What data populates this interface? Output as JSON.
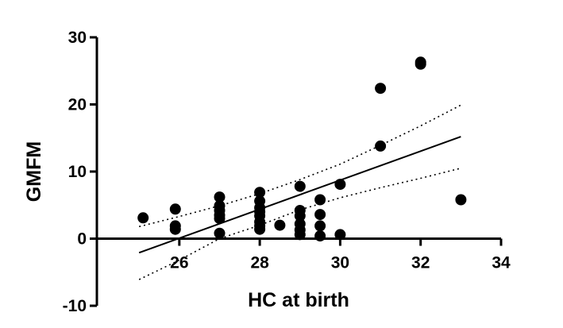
{
  "chart_data": {
    "type": "scatter",
    "xlabel": "HC at birth",
    "ylabel": "GMFM",
    "xlim": [
      23.95,
      34
    ],
    "ylim": [
      -10,
      30
    ],
    "xticks": [
      26,
      28,
      30,
      32,
      34
    ],
    "yticks": [
      -10,
      0,
      10,
      20,
      30
    ],
    "grid": false,
    "points": [
      {
        "x": 25.1,
        "y": 3.1
      },
      {
        "x": 25.9,
        "y": 4.4
      },
      {
        "x": 25.9,
        "y": 1.9
      },
      {
        "x": 25.9,
        "y": 1.4
      },
      {
        "x": 27.0,
        "y": 6.2
      },
      {
        "x": 27.0,
        "y": 4.9
      },
      {
        "x": 27.0,
        "y": 4.2
      },
      {
        "x": 27.0,
        "y": 3.5
      },
      {
        "x": 27.0,
        "y": 3.0
      },
      {
        "x": 27.0,
        "y": 0.8
      },
      {
        "x": 28.0,
        "y": 6.9
      },
      {
        "x": 28.0,
        "y": 5.6
      },
      {
        "x": 28.0,
        "y": 4.6
      },
      {
        "x": 28.0,
        "y": 4.0
      },
      {
        "x": 28.0,
        "y": 3.4
      },
      {
        "x": 28.0,
        "y": 2.5
      },
      {
        "x": 28.0,
        "y": 1.9
      },
      {
        "x": 28.0,
        "y": 1.4
      },
      {
        "x": 28.5,
        "y": 2.0
      },
      {
        "x": 29.0,
        "y": 7.8
      },
      {
        "x": 29.0,
        "y": 4.2
      },
      {
        "x": 29.0,
        "y": 3.4
      },
      {
        "x": 29.0,
        "y": 2.2
      },
      {
        "x": 29.0,
        "y": 1.3
      },
      {
        "x": 29.0,
        "y": 0.6
      },
      {
        "x": 29.5,
        "y": 5.8
      },
      {
        "x": 29.5,
        "y": 3.6
      },
      {
        "x": 29.5,
        "y": 1.9
      },
      {
        "x": 29.5,
        "y": 0.4
      },
      {
        "x": 30.0,
        "y": 8.1
      },
      {
        "x": 30.0,
        "y": 0.6
      },
      {
        "x": 31.0,
        "y": 22.4
      },
      {
        "x": 31.0,
        "y": 13.8
      },
      {
        "x": 32.0,
        "y": 26.3
      },
      {
        "x": 32.0,
        "y": 26.0
      },
      {
        "x": 33.0,
        "y": 5.8
      }
    ],
    "fit_line": {
      "x": [
        25.0,
        33.0
      ],
      "y": [
        -2.1,
        15.2
      ]
    },
    "ci_upper": {
      "x": [
        25.0,
        26.0,
        27.0,
        28.0,
        29.0,
        30.0,
        31.0,
        32.0,
        33.0
      ],
      "y": [
        1.8,
        3.3,
        4.9,
        6.7,
        8.8,
        11.1,
        13.9,
        16.8,
        19.9
      ]
    },
    "ci_lower": {
      "x": [
        25.0,
        26.0,
        27.0,
        28.0,
        29.0,
        30.0,
        31.0,
        32.0,
        33.0
      ],
      "y": [
        -6.1,
        -3.2,
        0.0,
        2.0,
        4.3,
        6.1,
        7.6,
        9.0,
        10.5
      ]
    }
  }
}
